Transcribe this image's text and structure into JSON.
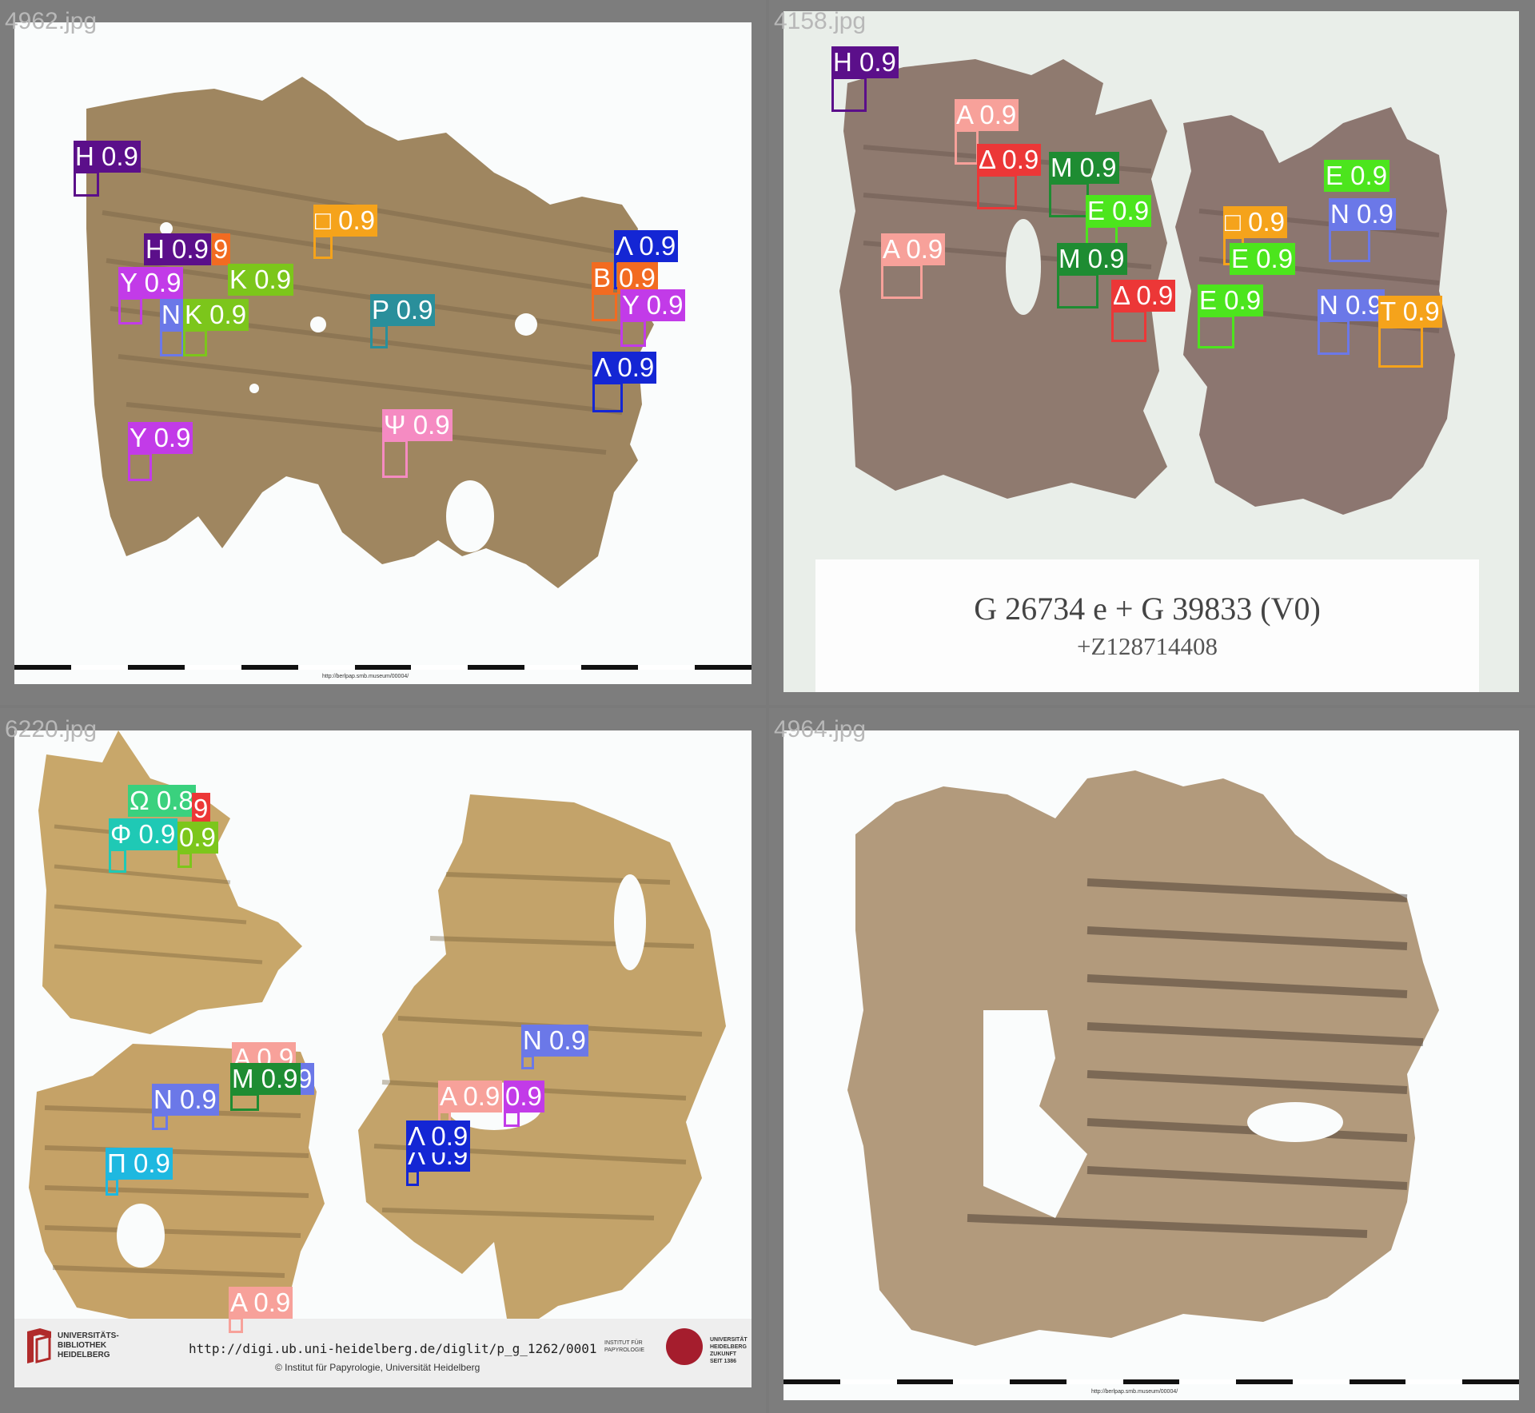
{
  "panels": [
    {
      "filename": "4962.jpg",
      "footer_url": "http://berlpap.smb.museum/00004/",
      "detections": [
        {
          "label": "H 0.9",
          "color": "#5b0f8a"
        },
        {
          "label": "□ 0.9",
          "color": "#f5a31b"
        },
        {
          "label": "H 0.9",
          "color": "#5b0f8a"
        },
        {
          "label": "9",
          "color": "#f26b21"
        },
        {
          "label": "Y 0.9",
          "color": "#c23be8"
        },
        {
          "label": "K 0.9",
          "color": "#7cc61b"
        },
        {
          "label": "N",
          "color": "#6b78e8"
        },
        {
          "label": "K 0.9",
          "color": "#7cc61b"
        },
        {
          "label": "P 0.9",
          "color": "#2a8f9b"
        },
        {
          "label": "Λ 0.9",
          "color": "#1426d4"
        },
        {
          "label": "B",
          "color": "#f26b21"
        },
        {
          "label": "0.9",
          "color": "#f26b21"
        },
        {
          "label": "Y 0.9",
          "color": "#c23be8"
        },
        {
          "label": "Λ 0.9",
          "color": "#1426d4"
        },
        {
          "label": "Y 0.9",
          "color": "#c23be8"
        },
        {
          "label": "Ψ 0.9",
          "color": "#f58bc2"
        }
      ]
    },
    {
      "filename": "4158.jpg",
      "card_line1": "G 26734 e + G 39833 (V0)",
      "card_line2": "+Z128714408",
      "detections": [
        {
          "label": "H 0.9",
          "color": "#5b0f8a"
        },
        {
          "label": "A 0.9",
          "color": "#f7a19a"
        },
        {
          "label": "Δ 0.9",
          "color": "#ec3737"
        },
        {
          "label": "M 0.9",
          "color": "#1e8c32"
        },
        {
          "label": "E 0.9",
          "color": "#4ce51d"
        },
        {
          "label": "A 0.9",
          "color": "#f7a19a"
        },
        {
          "label": "M 0.9",
          "color": "#1e8c32"
        },
        {
          "label": "Δ 0.9",
          "color": "#ec3737"
        },
        {
          "label": "E 0.9",
          "color": "#4ce51d"
        },
        {
          "label": "□ 0.9",
          "color": "#f5a31b"
        },
        {
          "label": "E 0.9",
          "color": "#4ce51d"
        },
        {
          "label": "N 0.9",
          "color": "#6b78e8"
        },
        {
          "label": "E 0.9",
          "color": "#4ce51d"
        },
        {
          "label": "N 0.9",
          "color": "#6b78e8"
        },
        {
          "label": "T 0.9",
          "color": "#f5a31b"
        }
      ]
    },
    {
      "filename": "6220.jpg",
      "footer_url": "http://digi.ub.uni-heidelberg.de/diglit/p_g_1262/0001",
      "footer_copy": "© Institut für Papyrologie, Universität Heidelberg",
      "logo_text": "UNIVERSITÄTS-\nBIBLIOTHEK\nHEIDELBERG",
      "institut_text": "INSTITUT FÜR\nPAPYROLOGIE",
      "uni_text": "UNIVERSITÄT\nHEIDELBERG\nZUKUNFT\nSEIT 1386",
      "detections": [
        {
          "label": "Ω 0.8",
          "color": "#3ad17e"
        },
        {
          "label": "9",
          "color": "#ec3737"
        },
        {
          "label": "Φ 0.9",
          "color": "#1fc9b5"
        },
        {
          "label": "0.9",
          "color": "#7cc61b"
        },
        {
          "label": "N 0.9",
          "color": "#6b78e8"
        },
        {
          "label": "A 0.9",
          "color": "#f7a19a"
        },
        {
          "label": "9",
          "color": "#6b78e8"
        },
        {
          "label": "M 0.9",
          "color": "#1e8c32"
        },
        {
          "label": "N 0.9",
          "color": "#6b78e8"
        },
        {
          "label": "Π 0.9",
          "color": "#1eb8e0"
        },
        {
          "label": "A 0.9",
          "color": "#f7a19a"
        },
        {
          "label": "0.9",
          "color": "#c23be8"
        },
        {
          "label": "Λ 0.9",
          "color": "#1426d4"
        },
        {
          "label": "Λ 0.9",
          "color": "#1426d4"
        },
        {
          "label": "A 0.9",
          "color": "#f7a19a"
        }
      ]
    },
    {
      "filename": "4964.jpg",
      "footer_url": "http://berlpap.smb.museum/00004/",
      "detections": []
    }
  ]
}
